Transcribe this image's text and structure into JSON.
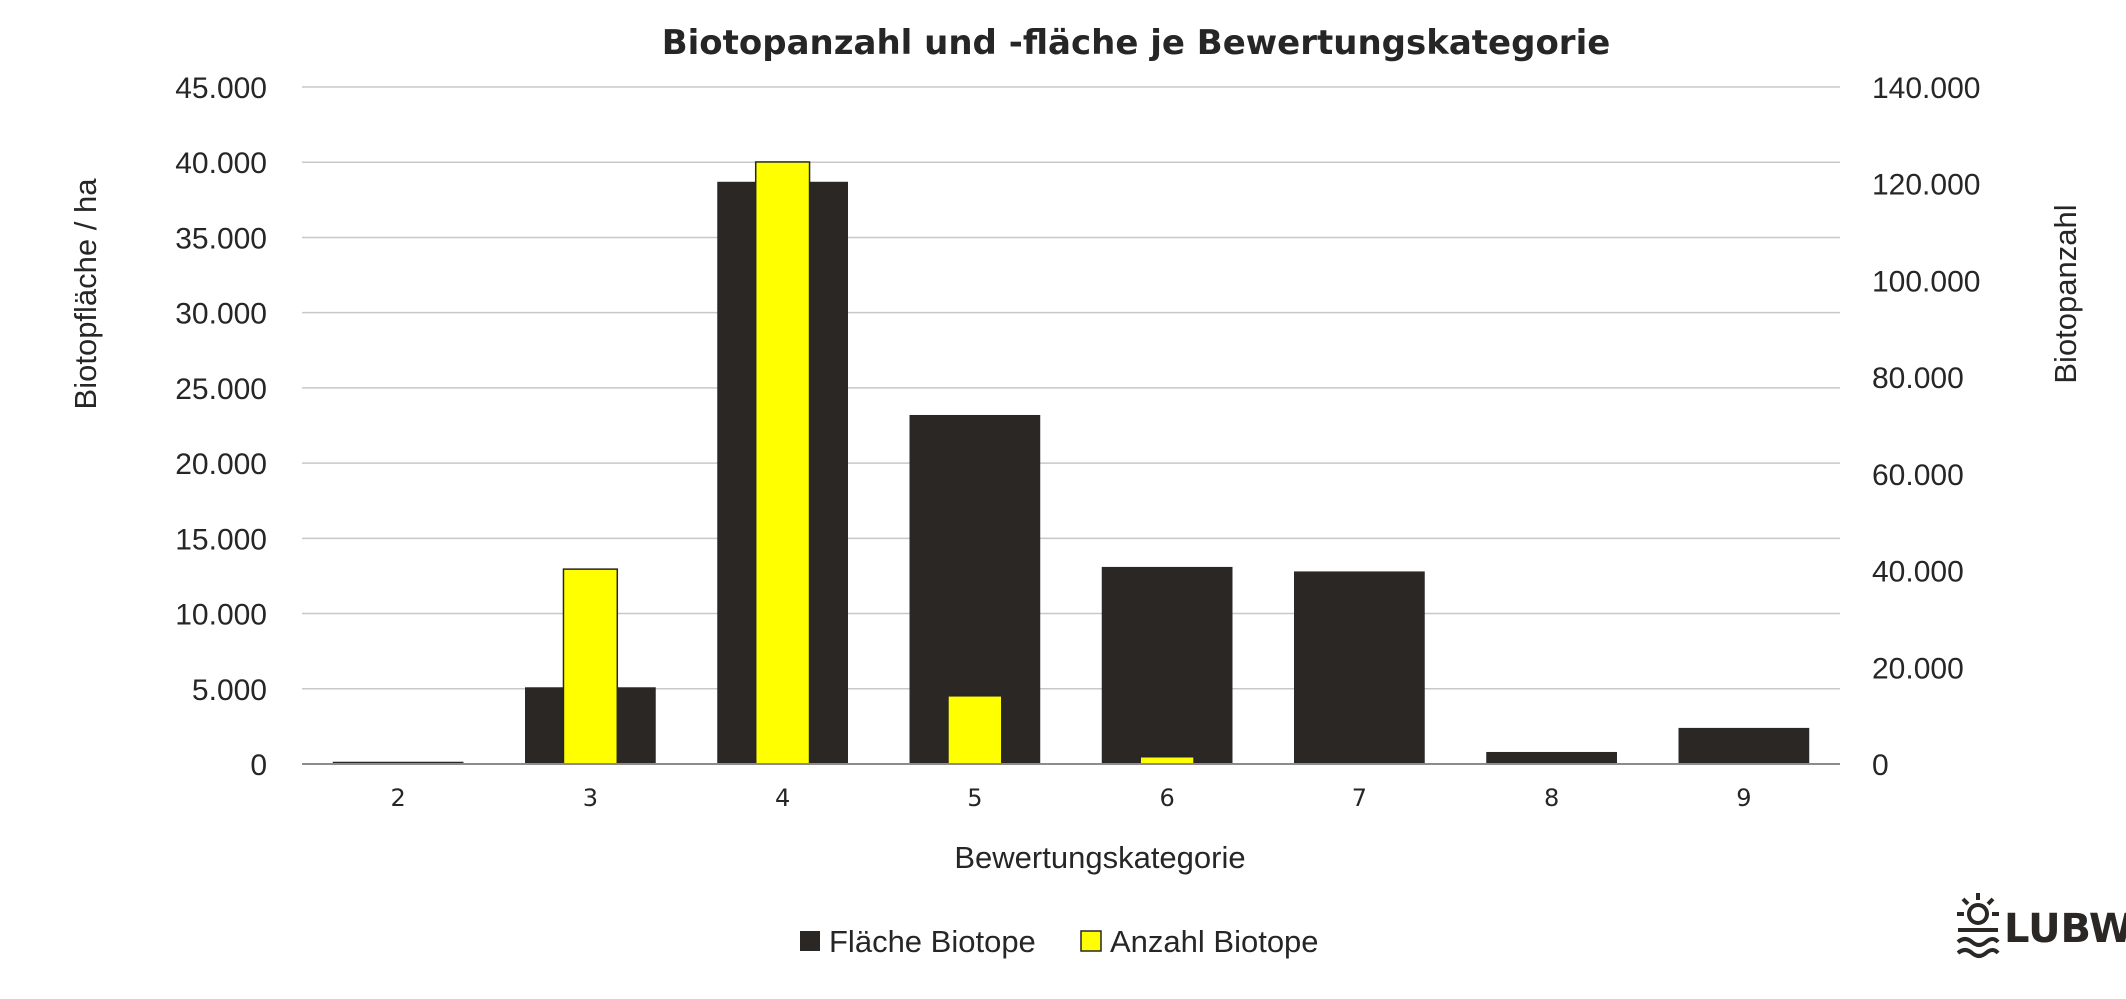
{
  "chart_data": {
    "type": "bar",
    "title": "Biotopanzahl und -fläche je Bewertungskategorie",
    "xlabel": "Bewertungskategorie",
    "ylabel_left": "Biotopfläche / ha",
    "ylabel_right": "Biotopanzahl",
    "categories": [
      "2",
      "3",
      "4",
      "5",
      "6",
      "7",
      "8",
      "9"
    ],
    "ylim_left": [
      0,
      45000
    ],
    "ylim_right": [
      0,
      140000
    ],
    "yticks_left": [
      0,
      5000,
      10000,
      15000,
      20000,
      25000,
      30000,
      35000,
      40000,
      45000
    ],
    "yticks_right": [
      0,
      20000,
      40000,
      60000,
      80000,
      100000,
      120000,
      140000
    ],
    "ytick_labels_left": [
      "0",
      "5.000",
      "10.000",
      "15.000",
      "20.000",
      "25.000",
      "30.000",
      "35.000",
      "40.000",
      "45.000"
    ],
    "ytick_labels_right": [
      "0",
      "20.000",
      "40.000",
      "60.000",
      "80.000",
      "100.000",
      "120.000",
      "140.000"
    ],
    "grid": true,
    "legend_position": "bottom",
    "series": [
      {
        "name": "Fläche Biotope",
        "axis": "left",
        "color": "#2a2725",
        "values": [
          150,
          5100,
          38700,
          23200,
          13100,
          12800,
          800,
          2400
        ]
      },
      {
        "name": "Anzahl Biotope",
        "axis": "right",
        "color": "#ffff00",
        "values": [
          0,
          40300,
          124500,
          14100,
          1500,
          0,
          0,
          0
        ]
      }
    ]
  },
  "logo": {
    "text": "LUBW"
  }
}
